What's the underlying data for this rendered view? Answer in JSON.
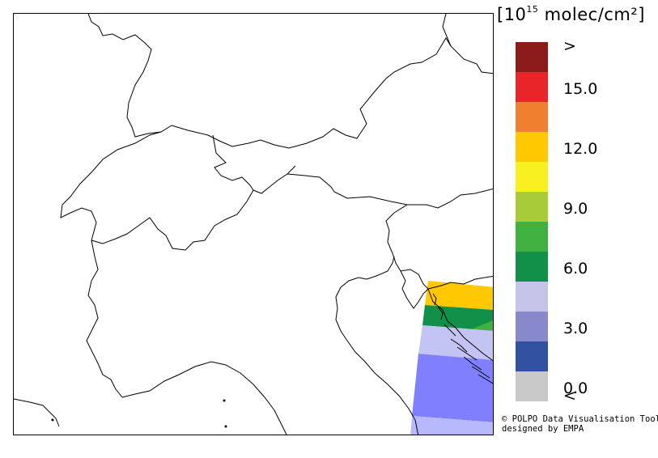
{
  "legend": {
    "unit_prefix": "[10",
    "unit_exp": "15",
    "unit_suffix": " molec/cm²]",
    "bins": [
      {
        "color": "#8B1A1A",
        "label": ">"
      },
      {
        "color": "#E8262A",
        "label": "15.0"
      },
      {
        "color": "#F08030",
        "label": ""
      },
      {
        "color": "#FFC800",
        "label": "12.0"
      },
      {
        "color": "#F8F020",
        "label": ""
      },
      {
        "color": "#A8CC38",
        "label": "9.0"
      },
      {
        "color": "#40B040",
        "label": ""
      },
      {
        "color": "#109048",
        "label": "6.0"
      },
      {
        "color": "#C4C4E8",
        "label": ""
      },
      {
        "color": "#8888CC",
        "label": "3.0"
      },
      {
        "color": "#3050A0",
        "label": ""
      },
      {
        "color": "#C8C8C8",
        "label": "0.0"
      }
    ],
    "under_label": "<"
  },
  "credit": {
    "line1": "© POLPO Data Visualisation Tool",
    "line2": "designed by EMPA"
  },
  "overlay_colors": {
    "orange": "#FFC800",
    "dark_green": "#109048",
    "light_green": "#40B040",
    "pale_blue": "#C4C4F4",
    "mid_blue": "#8080FF",
    "light_blue": "#B8B8FF"
  }
}
